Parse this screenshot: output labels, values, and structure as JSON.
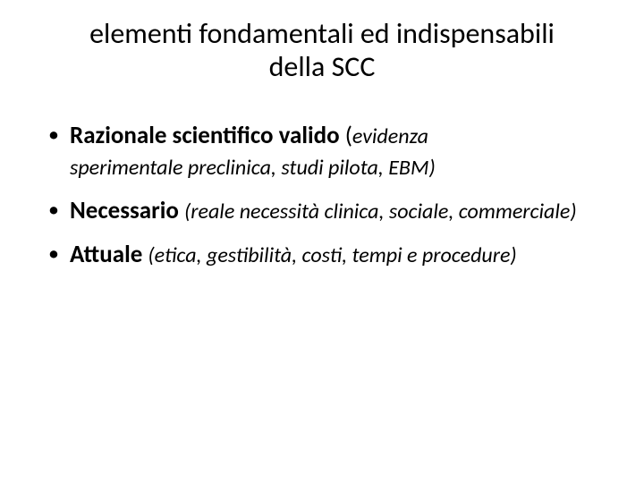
{
  "title_line1": "elementi fondamentali ed indispensabili",
  "title_line2": "della SCC",
  "bullets": [
    {
      "bold": "Razionale scientifico valido ",
      "paren_open": "(",
      "italic_inline": "evidenza",
      "italic_rest": "sperimentale preclinica, studi pilota, EBM)"
    },
    {
      "bold": "Necessario ",
      "italic_all": "(reale necessità clinica, sociale, commerciale)"
    },
    {
      "bold": "Attuale ",
      "italic_all": "(etica, gestibilità, costi, tempi e procedure)"
    }
  ],
  "colors": {
    "background": "#ffffff",
    "text": "#000000"
  },
  "typography": {
    "title_fontsize_pt": 24,
    "body_fontsize_pt": 20,
    "sub_fontsize_pt": 18,
    "font_family": "Calibri"
  }
}
